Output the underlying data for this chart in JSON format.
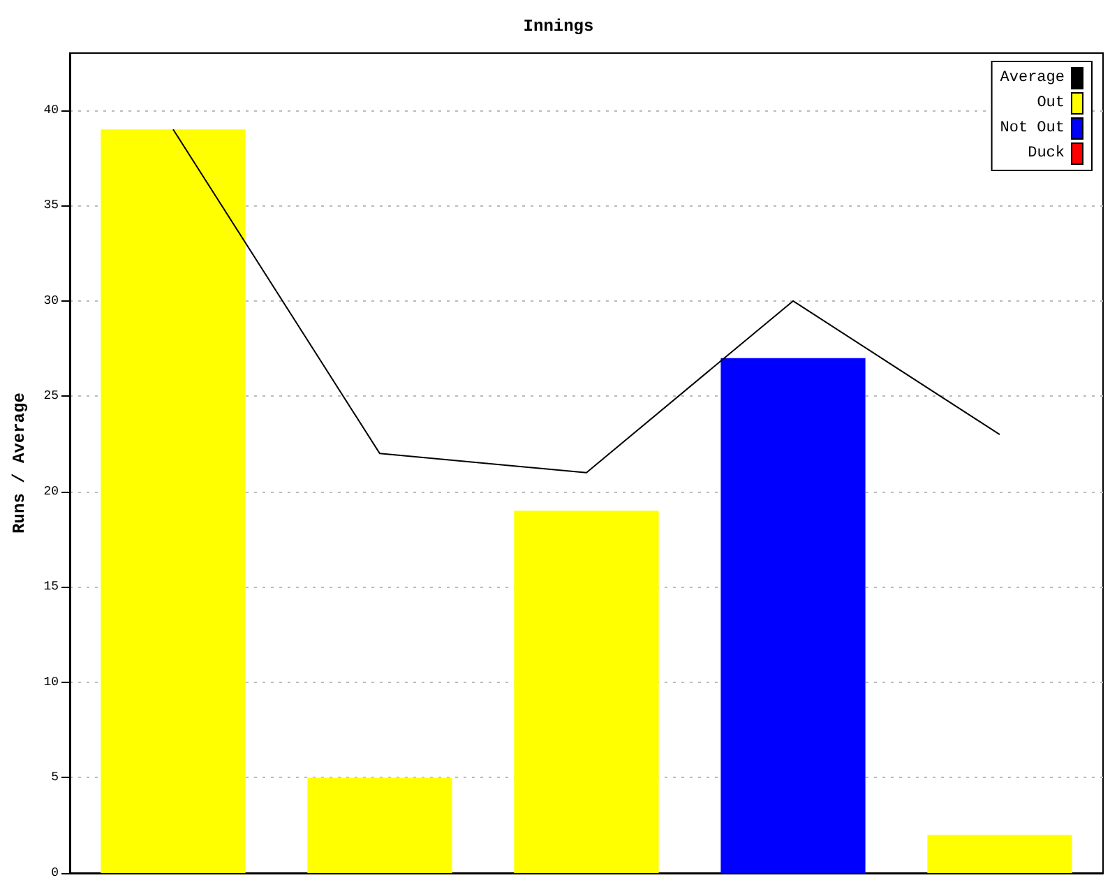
{
  "chart_data": {
    "type": "bar",
    "title": "Innings",
    "ylabel": "Runs / Average",
    "categories": [
      null,
      null,
      null,
      null,
      null
    ],
    "series": [
      {
        "name": "Average",
        "type": "line",
        "color": "#000000",
        "values": [
          39,
          22,
          21,
          30,
          23
        ]
      },
      {
        "name": "Out",
        "color": "#ffff00",
        "values": [
          39,
          5,
          19,
          null,
          2
        ]
      },
      {
        "name": "Not Out",
        "color": "#0000ff",
        "values": [
          null,
          null,
          null,
          27,
          null
        ]
      },
      {
        "name": "Duck",
        "color": "#ff0000",
        "values": [
          null,
          null,
          null,
          null,
          null
        ]
      }
    ],
    "ylim": [
      0,
      43
    ],
    "yticks": [
      0,
      5,
      10,
      15,
      20,
      25,
      30,
      35,
      40
    ],
    "grid": "y",
    "legend": "top right",
    "marker": "none"
  }
}
